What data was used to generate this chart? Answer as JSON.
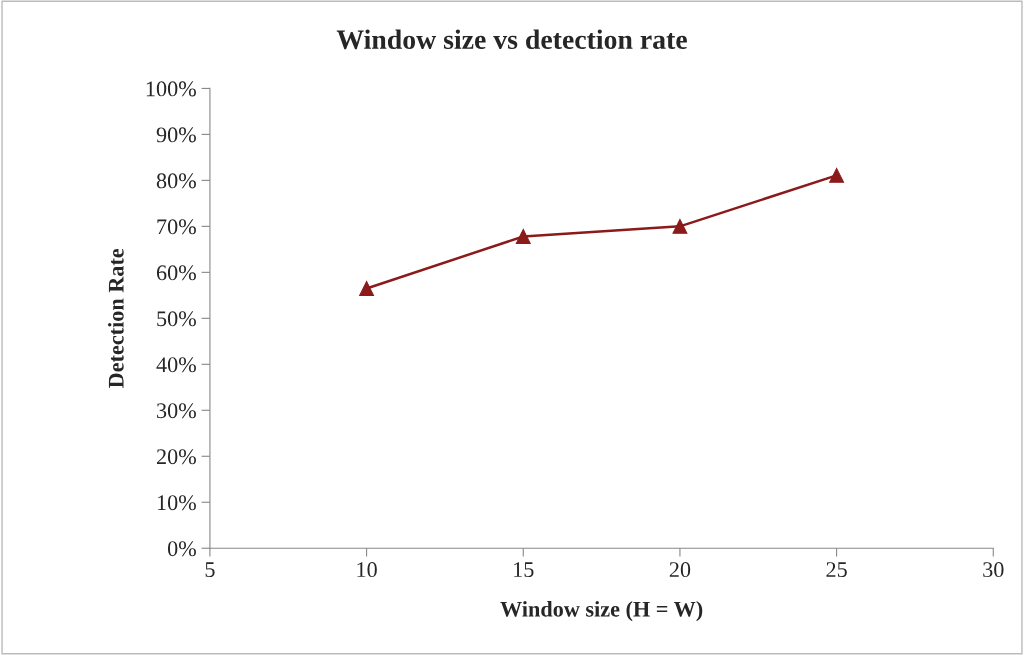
{
  "chart_data": {
    "type": "line",
    "title": "Window size vs detection rate",
    "xlabel": "Window size (H = W)",
    "ylabel": "Detection Rate",
    "x": [
      10,
      15,
      20,
      25
    ],
    "series": [
      {
        "color": "#8b1a1a",
        "values": [
          56.5,
          67.8,
          70.0,
          81.1
        ]
      }
    ],
    "xlim": [
      5,
      30
    ],
    "xticks": [
      5,
      10,
      15,
      20,
      25,
      30
    ],
    "ylim": [
      0,
      100
    ],
    "yticks": [
      {
        "value": 0,
        "label": "0%"
      },
      {
        "value": 10,
        "label": "10%"
      },
      {
        "value": 20,
        "label": "20%"
      },
      {
        "value": 30,
        "label": "30%"
      },
      {
        "value": 40,
        "label": "40%"
      },
      {
        "value": 50,
        "label": "50%"
      },
      {
        "value": 60,
        "label": "60%"
      },
      {
        "value": 70,
        "label": "70%"
      },
      {
        "value": 80,
        "label": "80%"
      },
      {
        "value": 90,
        "label": "90%"
      },
      {
        "value": 100,
        "label": "100%"
      }
    ],
    "grid": false,
    "legend": false,
    "marker": "triangle",
    "line_style": "solid"
  }
}
